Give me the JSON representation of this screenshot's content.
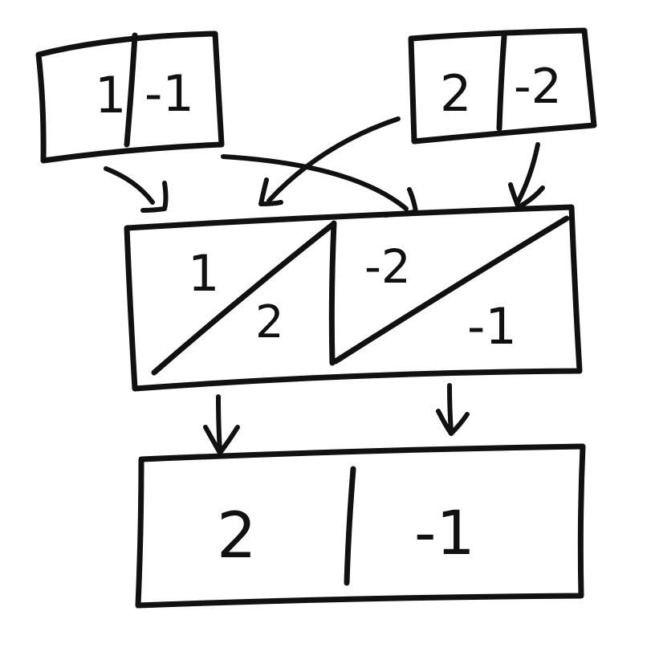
{
  "top_left_box": {
    "cells": [
      "1",
      "-1"
    ]
  },
  "top_right_box": {
    "cells": [
      "2",
      "-2"
    ]
  },
  "middle_box": {
    "left_cell": {
      "upper": "1",
      "lower": "2"
    },
    "right_cell": {
      "upper": "-2",
      "lower": "-1"
    }
  },
  "bottom_box": {
    "cells": [
      "2",
      "-1"
    ]
  },
  "colors": {
    "ink": "#111111",
    "paper": "#ffffff"
  }
}
